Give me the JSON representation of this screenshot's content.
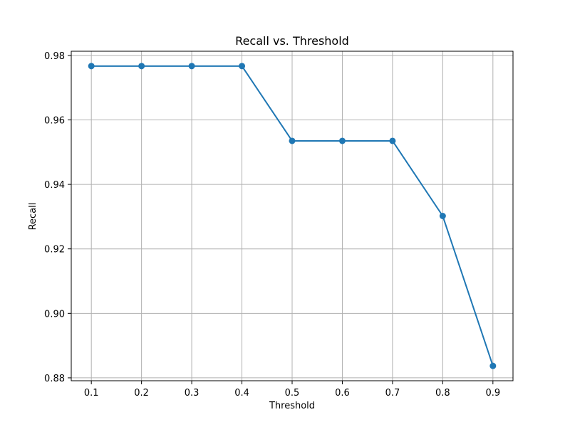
{
  "chart_data": {
    "type": "line",
    "title": "Recall vs. Threshold",
    "xlabel": "Threshold",
    "ylabel": "Recall",
    "x": [
      0.1,
      0.2,
      0.3,
      0.4,
      0.5,
      0.6,
      0.7,
      0.8,
      0.9
    ],
    "series": [
      {
        "values": [
          0.9767,
          0.9767,
          0.9767,
          0.9767,
          0.9535,
          0.9535,
          0.9535,
          0.9302,
          0.8837
        ],
        "color": "#1f77b4",
        "marker": "circle"
      }
    ],
    "xticks": [
      0.1,
      0.2,
      0.3,
      0.4,
      0.5,
      0.6,
      0.7,
      0.8,
      0.9
    ],
    "xtick_labels": [
      "0.1",
      "0.2",
      "0.3",
      "0.4",
      "0.5",
      "0.6",
      "0.7",
      "0.8",
      "0.9"
    ],
    "yticks": [
      0.88,
      0.9,
      0.92,
      0.94,
      0.96,
      0.98
    ],
    "ytick_labels": [
      "0.88",
      "0.90",
      "0.92",
      "0.94",
      "0.96",
      "0.98"
    ],
    "xlim": [
      0.06,
      0.94
    ],
    "ylim": [
      0.8791,
      0.9813
    ],
    "grid": true
  }
}
